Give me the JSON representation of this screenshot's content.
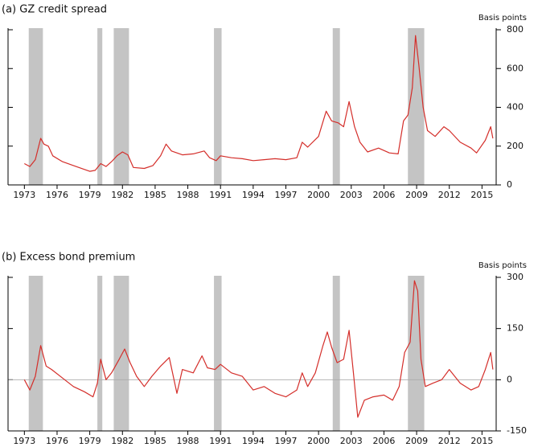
{
  "chart_data": [
    {
      "type": "line",
      "title": "(a) GZ credit spread",
      "ylabel": "Basis points",
      "xlim": [
        1971.5,
        2016.3
      ],
      "xticks": [
        1973,
        1976,
        1979,
        1982,
        1985,
        1988,
        1991,
        1994,
        1997,
        2000,
        2003,
        2006,
        2009,
        2012,
        2015
      ],
      "ylim": [
        0,
        800
      ],
      "yticks": [
        0,
        200,
        400,
        600,
        800
      ],
      "shaded": [
        [
          1973.4,
          1974.7
        ],
        [
          1979.7,
          1980.15
        ],
        [
          1981.2,
          1982.6
        ],
        [
          1990.4,
          1991.1
        ],
        [
          2001.3,
          2001.96
        ],
        [
          2008.2,
          2009.7
        ]
      ],
      "shade_color": "#c4c4c4",
      "series": [
        {
          "name": "GZ credit spread",
          "color": "#d42e2a",
          "x": [
            1973.0,
            1973.5,
            1974.0,
            1974.5,
            1974.8,
            1975.2,
            1975.6,
            1976.5,
            1977.5,
            1978.5,
            1979.0,
            1979.5,
            1980.0,
            1980.5,
            1981.0,
            1981.5,
            1982.0,
            1982.5,
            1983.0,
            1984.0,
            1984.8,
            1985.5,
            1986.0,
            1986.5,
            1987.5,
            1988.5,
            1989.5,
            1990.0,
            1990.6,
            1991.0,
            1992.0,
            1993.0,
            1994.0,
            1995.0,
            1996.0,
            1997.0,
            1998.0,
            1998.5,
            1999.0,
            2000.0,
            2000.7,
            2001.2,
            2001.8,
            2002.3,
            2002.8,
            2003.3,
            2003.8,
            2004.5,
            2005.5,
            2006.5,
            2007.3,
            2007.8,
            2008.2,
            2008.6,
            2008.9,
            2009.2,
            2009.6,
            2010.0,
            2010.7,
            2011.5,
            2012.0,
            2013.0,
            2014.0,
            2014.5,
            2015.3,
            2015.8,
            2016.0
          ],
          "values": [
            110,
            95,
            130,
            240,
            210,
            200,
            150,
            120,
            100,
            80,
            70,
            75,
            110,
            95,
            120,
            150,
            170,
            155,
            90,
            85,
            100,
            150,
            210,
            175,
            155,
            160,
            175,
            140,
            125,
            150,
            140,
            135,
            125,
            130,
            135,
            130,
            140,
            220,
            195,
            250,
            380,
            330,
            320,
            300,
            430,
            300,
            220,
            170,
            190,
            165,
            160,
            330,
            360,
            500,
            770,
            620,
            400,
            280,
            250,
            300,
            280,
            220,
            190,
            165,
            230,
            300,
            240
          ]
        }
      ]
    },
    {
      "type": "line",
      "title": "(b) Excess bond premium",
      "ylabel": "Basis points",
      "xlim": [
        1971.5,
        2016.3
      ],
      "xticks": [
        1973,
        1976,
        1979,
        1982,
        1985,
        1988,
        1991,
        1994,
        1997,
        2000,
        2003,
        2006,
        2009,
        2012,
        2015
      ],
      "ylim": [
        -150,
        300
      ],
      "yticks": [
        -150,
        0,
        150,
        300
      ],
      "shaded": [
        [
          1973.4,
          1974.7
        ],
        [
          1979.7,
          1980.15
        ],
        [
          1981.2,
          1982.6
        ],
        [
          1990.4,
          1991.1
        ],
        [
          2001.3,
          2001.96
        ],
        [
          2008.2,
          2009.7
        ]
      ],
      "shade_color": "#c4c4c4",
      "series": [
        {
          "name": "Excess bond premium",
          "color": "#d42e2a",
          "x": [
            1973.0,
            1973.5,
            1974.0,
            1974.5,
            1975.0,
            1975.5,
            1976.5,
            1977.5,
            1978.5,
            1979.3,
            1979.7,
            1980.0,
            1980.5,
            1981.0,
            1981.7,
            1982.2,
            1982.7,
            1983.3,
            1984.0,
            1984.7,
            1985.5,
            1986.3,
            1987.0,
            1987.5,
            1988.5,
            1989.3,
            1989.8,
            1990.5,
            1991.0,
            1992.0,
            1993.0,
            1994.0,
            1995.0,
            1996.0,
            1997.0,
            1998.0,
            1998.5,
            1999.0,
            1999.7,
            2000.4,
            2000.8,
            2001.2,
            2001.7,
            2002.3,
            2002.8,
            2003.2,
            2003.6,
            2004.2,
            2005.0,
            2006.0,
            2006.8,
            2007.4,
            2007.9,
            2008.4,
            2008.8,
            2009.1,
            2009.4,
            2009.8,
            2010.5,
            2011.3,
            2012.0,
            2013.0,
            2014.0,
            2014.7,
            2015.3,
            2015.8,
            2016.0
          ],
          "values": [
            0,
            -30,
            10,
            100,
            40,
            30,
            5,
            -20,
            -35,
            -50,
            -10,
            60,
            0,
            20,
            60,
            90,
            50,
            10,
            -20,
            10,
            40,
            65,
            -40,
            30,
            20,
            70,
            35,
            30,
            45,
            20,
            10,
            -30,
            -20,
            -40,
            -50,
            -30,
            20,
            -20,
            20,
            100,
            140,
            95,
            50,
            60,
            145,
            20,
            -110,
            -60,
            -50,
            -45,
            -60,
            -20,
            80,
            110,
            290,
            260,
            60,
            -20,
            -10,
            0,
            30,
            -10,
            -30,
            -20,
            30,
            80,
            30
          ]
        }
      ]
    }
  ]
}
